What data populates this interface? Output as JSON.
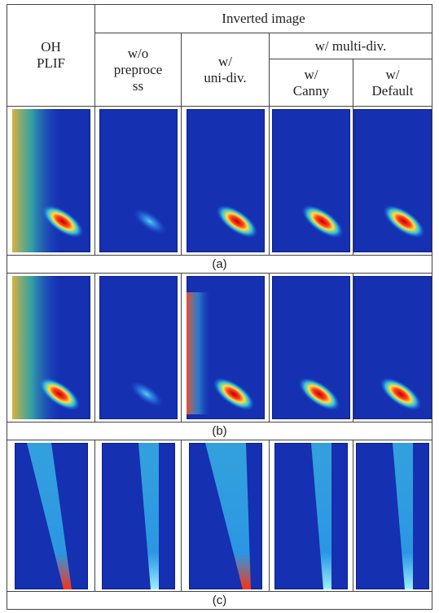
{
  "header": {
    "col1": [
      "OH",
      "PLIF"
    ],
    "group": "Inverted image",
    "col2": [
      "w/o",
      "preproce",
      "ss"
    ],
    "col3": [
      "w/",
      "uni-div."
    ],
    "subgroup": "w/ multi-div.",
    "col4": [
      "w/",
      "Canny"
    ],
    "col5": [
      "w/",
      "Default"
    ]
  },
  "rows": [
    {
      "caption": "(a)"
    },
    {
      "caption": "(b)"
    },
    {
      "caption": "(c)"
    }
  ]
}
